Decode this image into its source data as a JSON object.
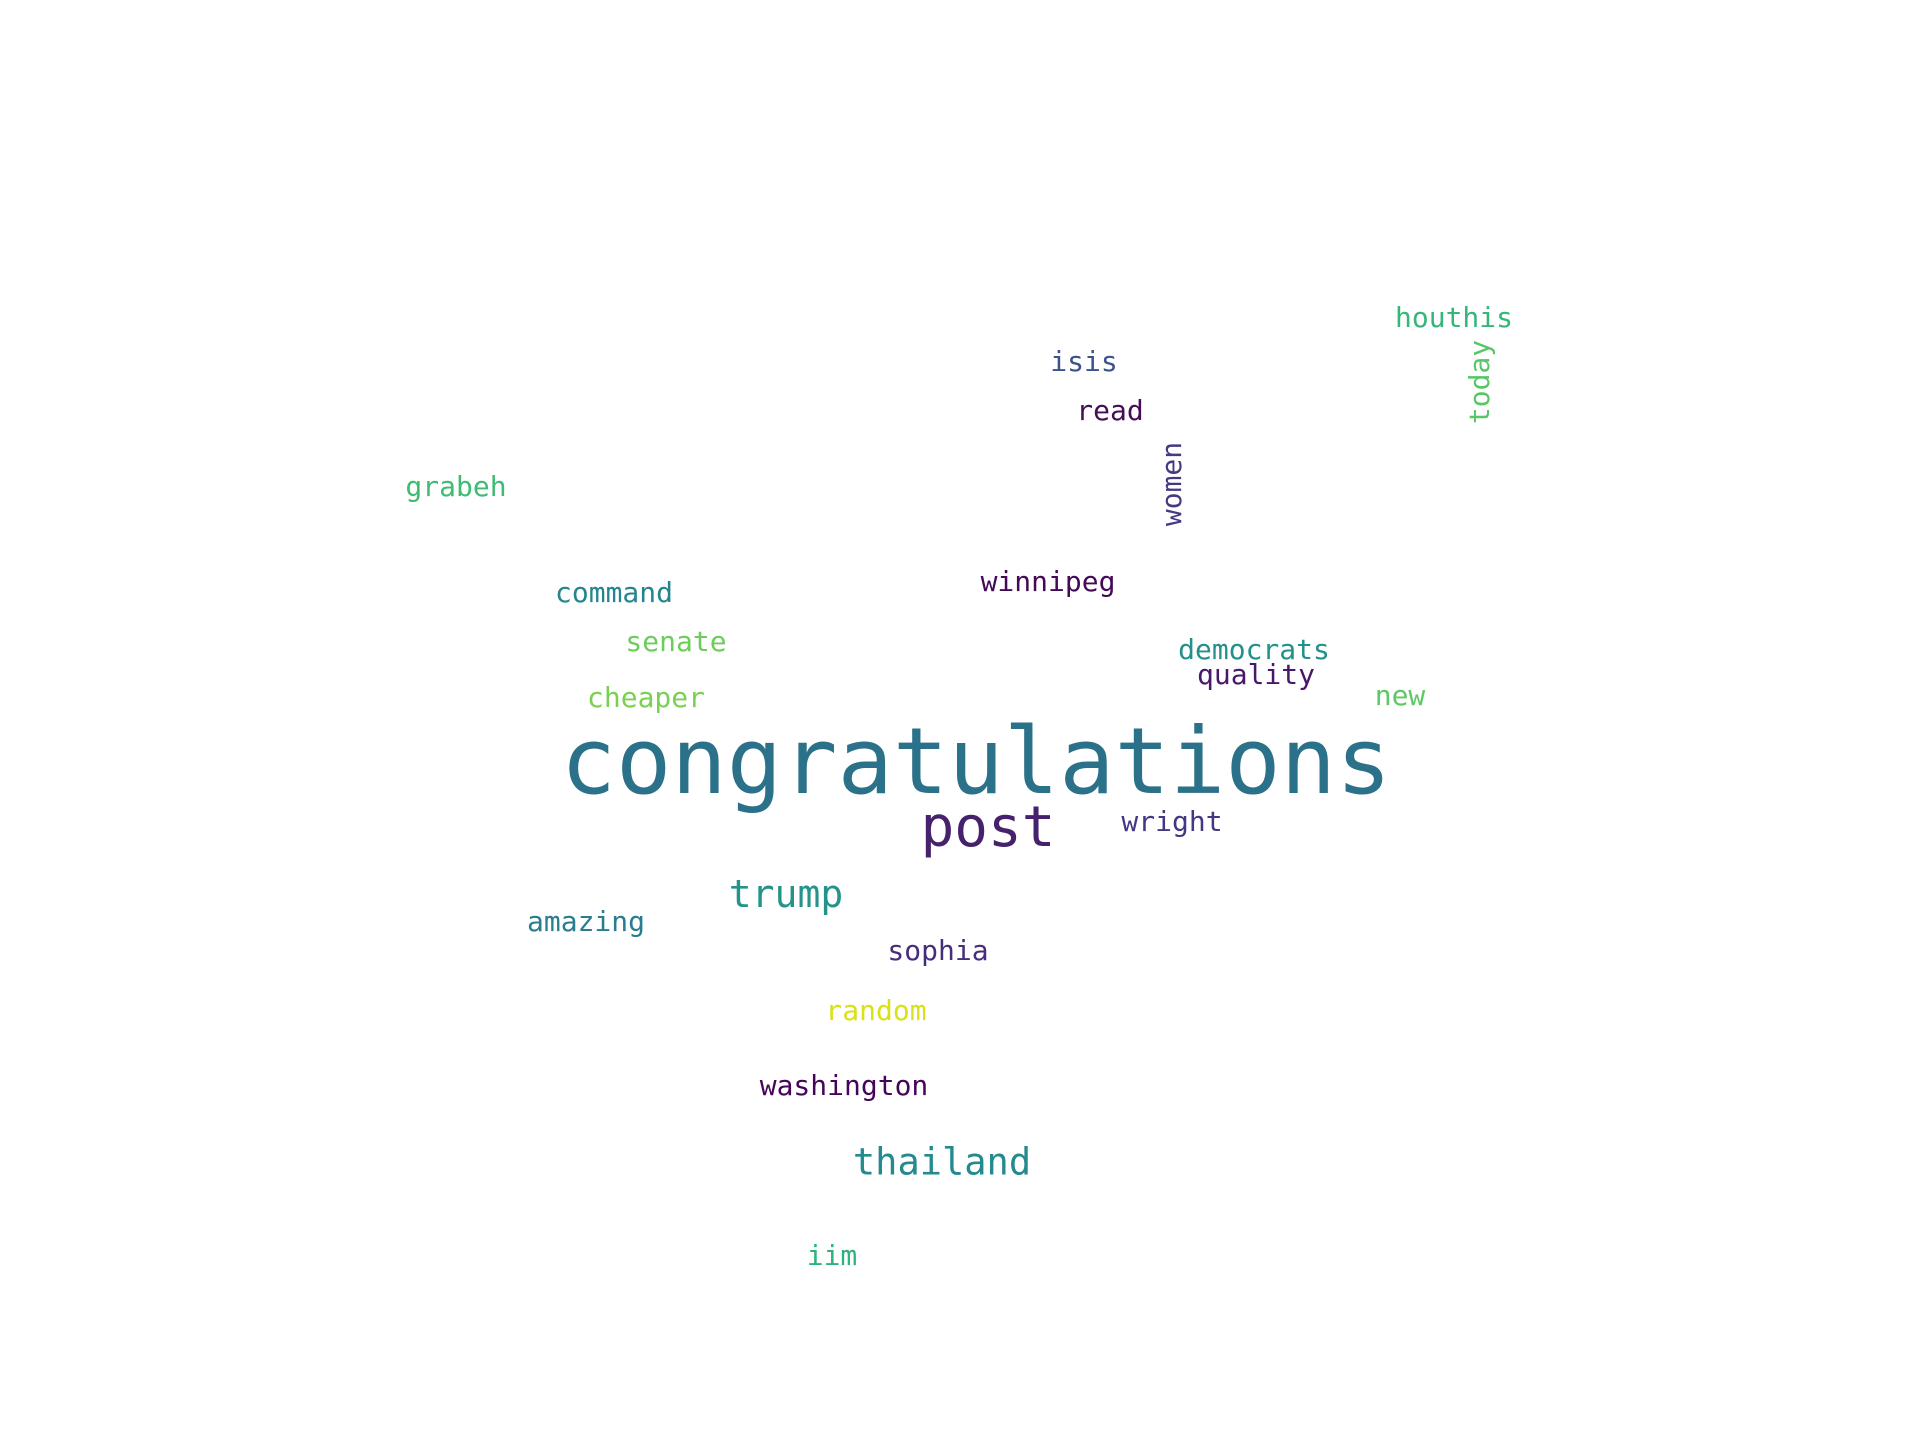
{
  "words": [
    {
      "id": "congratulations",
      "text": "congratulations",
      "color": "#2b7189"
    },
    {
      "id": "post",
      "text": "post",
      "color": "#46226c"
    },
    {
      "id": "trump",
      "text": "trump",
      "color": "#24948a"
    },
    {
      "id": "thailand",
      "text": "thailand",
      "color": "#238a8d"
    },
    {
      "id": "houthis",
      "text": "houthis",
      "color": "#35b779"
    },
    {
      "id": "today",
      "text": "today",
      "color": "#56c667"
    },
    {
      "id": "isis",
      "text": "isis",
      "color": "#3b528b"
    },
    {
      "id": "read",
      "text": "read",
      "color": "#440d54"
    },
    {
      "id": "women",
      "text": "women",
      "color": "#443983"
    },
    {
      "id": "grabeh",
      "text": "grabeh",
      "color": "#3fbc73"
    },
    {
      "id": "command",
      "text": "command",
      "color": "#25858e"
    },
    {
      "id": "winnipeg",
      "text": "winnipeg",
      "color": "#440a57"
    },
    {
      "id": "senate",
      "text": "senate",
      "color": "#6ccd5a"
    },
    {
      "id": "democrats",
      "text": "democrats",
      "color": "#21918c"
    },
    {
      "id": "quality",
      "text": "quality",
      "color": "#48186a"
    },
    {
      "id": "cheaper",
      "text": "cheaper",
      "color": "#7ad151"
    },
    {
      "id": "new",
      "text": "new",
      "color": "#5ec962"
    },
    {
      "id": "wright",
      "text": "wright",
      "color": "#453781"
    },
    {
      "id": "amazing",
      "text": "amazing",
      "color": "#287d8e"
    },
    {
      "id": "sophia",
      "text": "sophia",
      "color": "#472e7c"
    },
    {
      "id": "random",
      "text": "random",
      "color": "#d8e219"
    },
    {
      "id": "washington",
      "text": "washington",
      "color": "#450559"
    },
    {
      "id": "iim",
      "text": "iim",
      "color": "#2eb37c"
    }
  ]
}
